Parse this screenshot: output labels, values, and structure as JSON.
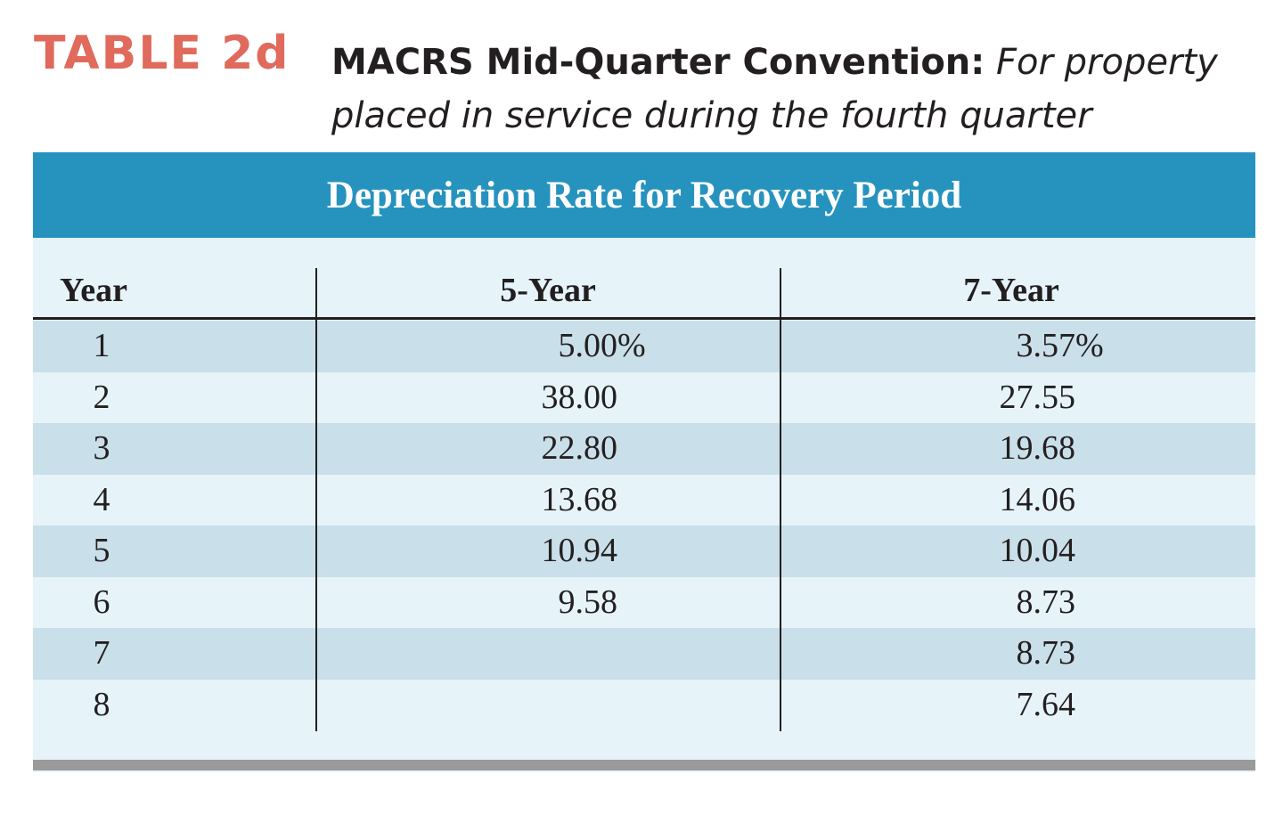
{
  "table_label": "TABLE 2d",
  "caption": {
    "bold": "MACRS Mid-Quarter Convention:",
    "italic": "For property placed in service during the fourth quarter"
  },
  "banner": "Depreciation Rate for Recovery Period",
  "columns": {
    "year": "Year",
    "five_year": "5-Year",
    "seven_year": "7-Year"
  },
  "rows": [
    {
      "year": "1",
      "five_year": "5.00",
      "seven_year": "3.57"
    },
    {
      "year": "2",
      "five_year": "38.00",
      "seven_year": "27.55"
    },
    {
      "year": "3",
      "five_year": "22.80",
      "seven_year": "19.68"
    },
    {
      "year": "4",
      "five_year": "13.68",
      "seven_year": "14.06"
    },
    {
      "year": "5",
      "five_year": "10.94",
      "seven_year": "10.04"
    },
    {
      "year": "6",
      "five_year": "9.58",
      "seven_year": "8.73"
    },
    {
      "year": "7",
      "five_year": "",
      "seven_year": "8.73"
    },
    {
      "year": "8",
      "five_year": "",
      "seven_year": "7.64"
    }
  ],
  "percent_sign": "%",
  "colors": {
    "label": "#e06a5c",
    "banner": "#2693bf",
    "row_shaded": "#c9dfe9",
    "row_light": "#e6f4fa"
  }
}
